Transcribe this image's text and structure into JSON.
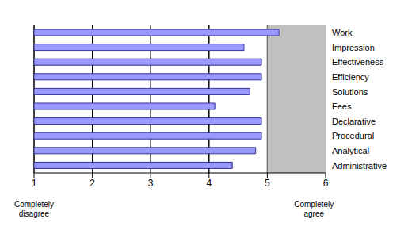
{
  "chart_data": {
    "type": "bar",
    "orientation": "horizontal",
    "categories": [
      "Work",
      "Impression",
      "Effectiveness",
      "Efficiency",
      "Solutions",
      "Fees",
      "Declarative",
      "Procedural",
      "Analytical",
      "Administrative"
    ],
    "values": [
      5.2,
      4.6,
      4.9,
      4.9,
      4.7,
      4.1,
      4.9,
      4.9,
      4.8,
      4.4
    ],
    "color": "#9999ff",
    "xlim": [
      1,
      6
    ],
    "xticks": [
      1,
      2,
      3,
      4,
      5,
      6
    ],
    "grid": true,
    "annotations": [
      {
        "text": "Completely disagree",
        "x": 1
      },
      {
        "text": "Completely agree",
        "x": 5.8
      }
    ]
  }
}
